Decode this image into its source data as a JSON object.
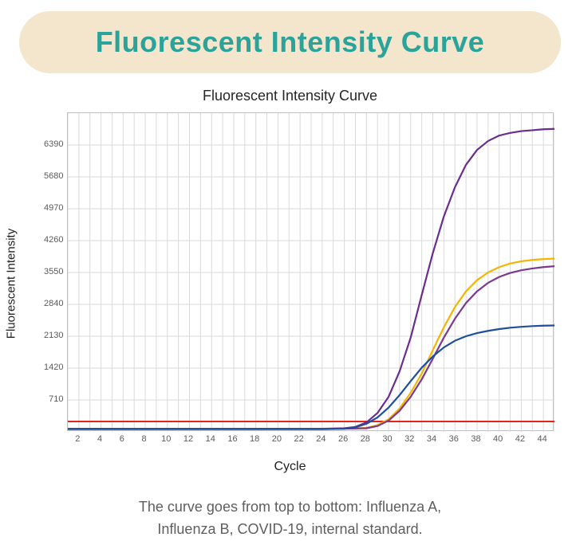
{
  "header": {
    "title": "Fluorescent Intensity Curve"
  },
  "chart": {
    "type": "line",
    "title": "Fluorescent Intensity Curve",
    "ylabel": "Fluorescent Intensity",
    "xlabel": "Cycle",
    "xlim": [
      1,
      45
    ],
    "ylim": [
      0,
      7100
    ],
    "xtick_step": 2,
    "xtick_start": 2,
    "xtick_end": 44,
    "ytick_step": 710,
    "ytick_start": 710,
    "ytick_end": 6390,
    "background_color": "#ffffff",
    "grid_color": "#d9d9d9",
    "axis_color": "#bfbfbf",
    "tick_label_color": "#5a5a5a",
    "tick_label_fontsize": 11,
    "label_fontsize": 15,
    "title_fontsize": 18,
    "line_width": 2.2,
    "threshold": {
      "y": 230,
      "color": "#e4231b",
      "width": 2
    },
    "series": [
      {
        "name": "Influenza A",
        "color": "#6a2c91",
        "x": [
          1,
          5,
          10,
          15,
          20,
          24,
          26,
          27,
          28,
          29,
          30,
          31,
          32,
          33,
          34,
          35,
          36,
          37,
          38,
          39,
          40,
          41,
          42,
          43,
          44,
          45
        ],
        "y": [
          70,
          70,
          70,
          70,
          70,
          70,
          80,
          110,
          210,
          420,
          780,
          1350,
          2100,
          3050,
          3980,
          4800,
          5450,
          5950,
          6280,
          6480,
          6600,
          6660,
          6700,
          6720,
          6740,
          6750
        ]
      },
      {
        "name": "Influenza B",
        "color": "#f4b400",
        "x": [
          1,
          5,
          10,
          15,
          20,
          24,
          26,
          28,
          29,
          30,
          31,
          32,
          33,
          34,
          35,
          36,
          37,
          38,
          39,
          40,
          41,
          42,
          43,
          44,
          45
        ],
        "y": [
          70,
          70,
          70,
          70,
          70,
          70,
          70,
          90,
          150,
          280,
          520,
          870,
          1300,
          1820,
          2330,
          2780,
          3130,
          3380,
          3550,
          3670,
          3750,
          3800,
          3830,
          3850,
          3860
        ]
      },
      {
        "name": "COVID-19",
        "color": "#7a3b8f",
        "x": [
          1,
          5,
          10,
          15,
          20,
          24,
          26,
          28,
          29,
          30,
          31,
          32,
          33,
          34,
          35,
          36,
          37,
          38,
          39,
          40,
          41,
          42,
          43,
          44,
          45
        ],
        "y": [
          70,
          70,
          70,
          70,
          70,
          70,
          70,
          80,
          130,
          250,
          470,
          780,
          1170,
          1630,
          2100,
          2520,
          2870,
          3130,
          3320,
          3450,
          3540,
          3600,
          3640,
          3670,
          3690
        ]
      },
      {
        "name": "internal standard",
        "color": "#1f4e9c",
        "x": [
          1,
          5,
          10,
          15,
          20,
          24,
          26,
          27,
          28,
          29,
          30,
          31,
          32,
          33,
          34,
          35,
          36,
          37,
          38,
          39,
          40,
          41,
          42,
          43,
          44,
          45
        ],
        "y": [
          60,
          60,
          60,
          60,
          60,
          60,
          70,
          100,
          180,
          320,
          540,
          820,
          1130,
          1430,
          1680,
          1880,
          2030,
          2130,
          2200,
          2250,
          2290,
          2320,
          2340,
          2355,
          2365,
          2370
        ]
      }
    ]
  },
  "caption": {
    "line1": "The curve goes from top to bottom: Influenza A,",
    "line2": "Influenza B, COVID-19, internal standard."
  },
  "colors": {
    "header_bg": "#f3e6cd",
    "header_text": "#2ba39a",
    "caption_text": "#5e5e5e"
  }
}
